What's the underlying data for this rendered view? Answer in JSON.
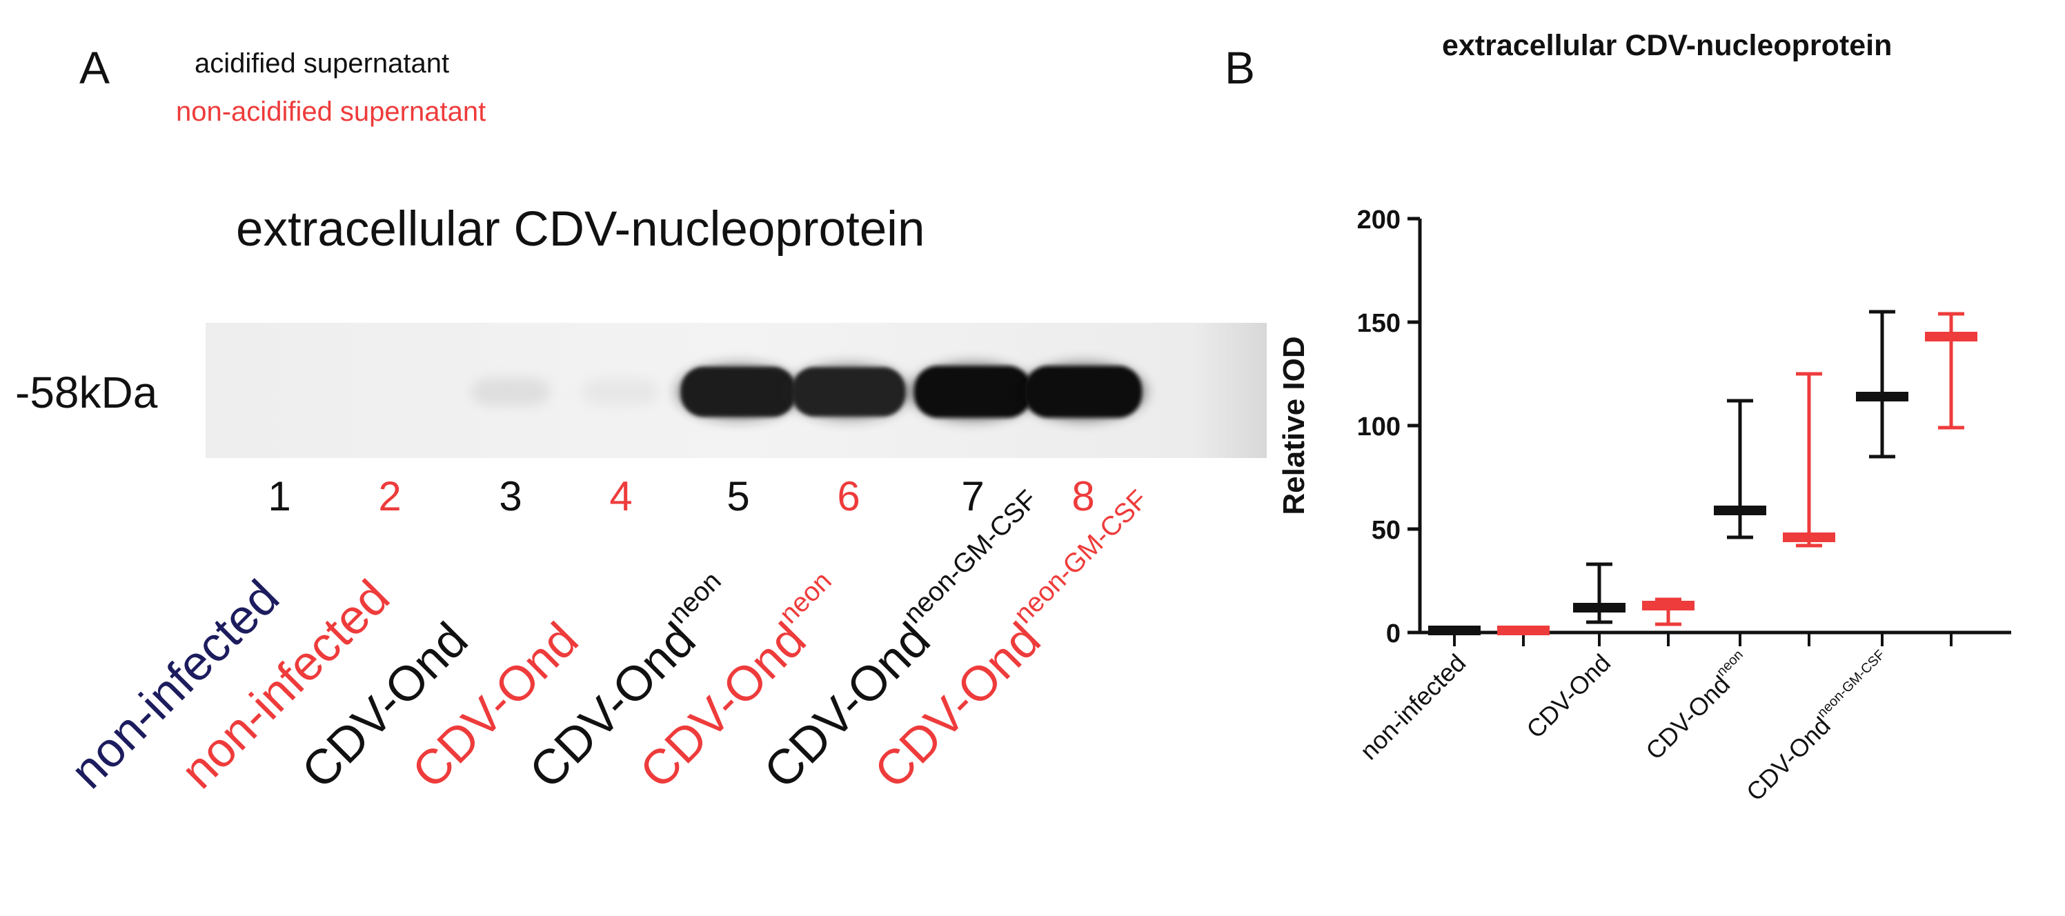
{
  "colors": {
    "acidified": "#111111",
    "non_acidified": "#ee3b3b",
    "lane1_label": "#1c1c5e"
  },
  "panel_a": {
    "letter": "A",
    "legend": {
      "acidified": "acidified supernatant",
      "non_acidified": "non-acidified supernatant"
    },
    "title": "extracellular CDV-nucleoprotein",
    "marker": "-58kDa",
    "lanes": [
      {
        "num": "1",
        "label": "non-infected",
        "sup": "",
        "group": "lane1_label",
        "band": 0.0
      },
      {
        "num": "2",
        "label": "non-infected",
        "sup": "",
        "group": "non_acidified",
        "band": 0.0
      },
      {
        "num": "3",
        "label": "CDV-Ond",
        "sup": "",
        "group": "acidified",
        "band": 0.08
      },
      {
        "num": "4",
        "label": "CDV-Ond",
        "sup": "",
        "group": "non_acidified",
        "band": 0.04
      },
      {
        "num": "5",
        "label": "CDV-Ond",
        "sup": "neon",
        "group": "acidified",
        "band": 0.95
      },
      {
        "num": "6",
        "label": "CDV-Ond",
        "sup": "neon",
        "group": "non_acidified",
        "band": 0.92
      },
      {
        "num": "7",
        "label": "CDV-Ond",
        "sup": "neon-GM-CSF",
        "group": "acidified",
        "band": 1.0
      },
      {
        "num": "8",
        "label": "CDV-Ond",
        "sup": "neon-GM-CSF",
        "group": "non_acidified",
        "band": 1.0
      }
    ]
  },
  "panel_b": {
    "letter": "B"
  },
  "chart_data": {
    "type": "bar",
    "title": "extracellular CDV-nucleoprotein",
    "ylabel": "Relative IOD",
    "xlabel": "",
    "ylim": [
      0,
      200
    ],
    "yticks": [
      0,
      50,
      100,
      150,
      200
    ],
    "categories": [
      {
        "label": "non-infected",
        "sup": ""
      },
      {
        "label": "CDV-Ond",
        "sup": ""
      },
      {
        "label": "CDV-Ond",
        "sup": "neon"
      },
      {
        "label": "CDV-Ond",
        "sup": "neon-GM-CSF"
      }
    ],
    "series": [
      {
        "color": "#111111",
        "median": [
          1,
          12,
          59,
          114
        ],
        "min": [
          0,
          5,
          46,
          85
        ],
        "max": [
          2,
          33,
          112,
          155
        ]
      },
      {
        "color": "#ee3b3b",
        "median": [
          1,
          13,
          46,
          143
        ],
        "min": [
          0,
          4,
          42,
          99
        ],
        "max": [
          2,
          16,
          125,
          154
        ]
      }
    ]
  }
}
